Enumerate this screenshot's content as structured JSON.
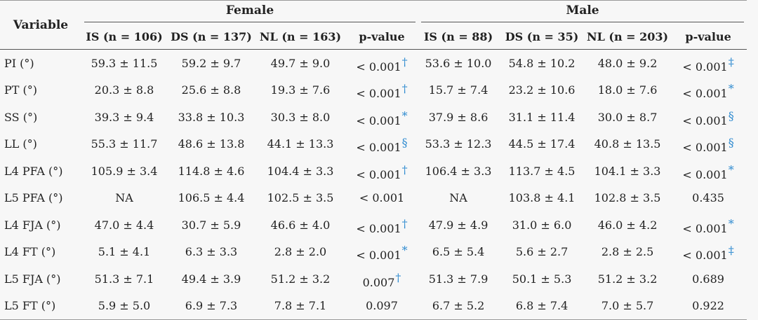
{
  "header": {
    "variable": "Variable",
    "female": "Female",
    "male": "Male",
    "columns": [
      "IS (n = 106)",
      "DS (n = 137)",
      "NL (n = 163)",
      "p-value",
      "IS (n = 88)",
      "DS (n = 35)",
      "NL (n = 203)",
      "p-value"
    ]
  },
  "rows": [
    {
      "label": "PI (°)",
      "f_is": "59.3 ± 11.5",
      "f_ds": "59.2 ± 9.7",
      "f_nl": "49.7 ± 9.0",
      "f_p": "< 0.001",
      "f_sym": "†",
      "m_is": "53.6 ± 10.0",
      "m_ds": "54.8 ± 10.2",
      "m_nl": "48.0 ± 9.2",
      "m_p": "< 0.001",
      "m_sym": "‡"
    },
    {
      "label": "PT (°)",
      "f_is": "20.3 ± 8.8",
      "f_ds": "25.6 ± 8.8",
      "f_nl": "19.3 ± 7.6",
      "f_p": "< 0.001",
      "f_sym": "†",
      "m_is": "15.7 ± 7.4",
      "m_ds": "23.2 ± 10.6",
      "m_nl": "18.0 ± 7.6",
      "m_p": "< 0.001",
      "m_sym": "*"
    },
    {
      "label": "SS (°)",
      "f_is": "39.3 ± 9.4",
      "f_ds": "33.8 ± 10.3",
      "f_nl": "30.3 ± 8.0",
      "f_p": "< 0.001",
      "f_sym": "*",
      "m_is": "37.9 ± 8.6",
      "m_ds": "31.1 ± 11.4",
      "m_nl": "30.0 ± 8.7",
      "m_p": "< 0.001",
      "m_sym": "§"
    },
    {
      "label": "LL (°)",
      "f_is": "55.3 ± 11.7",
      "f_ds": "48.6 ± 13.8",
      "f_nl": "44.1 ± 13.3",
      "f_p": "< 0.001",
      "f_sym": "§",
      "m_is": "53.3 ± 12.3",
      "m_ds": "44.5 ± 17.4",
      "m_nl": "40.8 ± 13.5",
      "m_p": "< 0.001",
      "m_sym": "§"
    },
    {
      "label": "L4 PFA (°)",
      "f_is": "105.9 ± 3.4",
      "f_ds": "114.8 ± 4.6",
      "f_nl": "104.4 ± 3.3",
      "f_p": "< 0.001",
      "f_sym": "†",
      "m_is": "106.4 ± 3.3",
      "m_ds": "113.7 ± 4.5",
      "m_nl": "104.1 ± 3.3",
      "m_p": "< 0.001",
      "m_sym": "*"
    },
    {
      "label": "L5 PFA (°)",
      "f_is": "NA",
      "f_ds": "106.5 ± 4.4",
      "f_nl": "102.5 ± 3.5",
      "f_p": "< 0.001",
      "f_sym": "",
      "m_is": "NA",
      "m_ds": "103.8 ± 4.1",
      "m_nl": "102.8 ± 3.5",
      "m_p": "0.435",
      "m_sym": ""
    },
    {
      "label": "L4 FJA (°)",
      "f_is": "47.0 ± 4.4",
      "f_ds": "30.7 ± 5.9",
      "f_nl": "46.6 ± 4.0",
      "f_p": "< 0.001",
      "f_sym": "†",
      "m_is": "47.9 ± 4.9",
      "m_ds": "31.0 ± 6.0",
      "m_nl": "46.0 ± 4.2",
      "m_p": "< 0.001",
      "m_sym": "*"
    },
    {
      "label": "L4 FT (°)",
      "f_is": "5.1 ± 4.1",
      "f_ds": "6.3 ± 3.3",
      "f_nl": "2.8 ± 2.0",
      "f_p": "< 0.001",
      "f_sym": "*",
      "m_is": "6.5 ± 5.4",
      "m_ds": "5.6 ± 2.7",
      "m_nl": "2.8 ± 2.5",
      "m_p": "< 0.001",
      "m_sym": "‡"
    },
    {
      "label": "L5 FJA (°)",
      "f_is": "51.3 ± 7.1",
      "f_ds": "49.4 ± 3.9",
      "f_nl": "51.2 ± 3.2",
      "f_p": "0.007",
      "f_sym": "†",
      "m_is": "51.3 ± 7.9",
      "m_ds": "50.1 ± 5.3",
      "m_nl": "51.2 ± 3.2",
      "m_p": "0.689",
      "m_sym": ""
    },
    {
      "label": "L5 FT (°)",
      "f_is": "5.9 ± 5.0",
      "f_ds": "6.9 ± 7.3",
      "f_nl": "7.8 ± 7.1",
      "f_p": "0.097",
      "f_sym": "",
      "m_is": "6.7 ± 5.2",
      "m_ds": "6.8 ± 7.4",
      "m_nl": "7.0 ± 5.7",
      "m_p": "0.922",
      "m_sym": ""
    }
  ],
  "colors": {
    "symbol": "#2f8bd0",
    "background": "#f7f7f7"
  }
}
